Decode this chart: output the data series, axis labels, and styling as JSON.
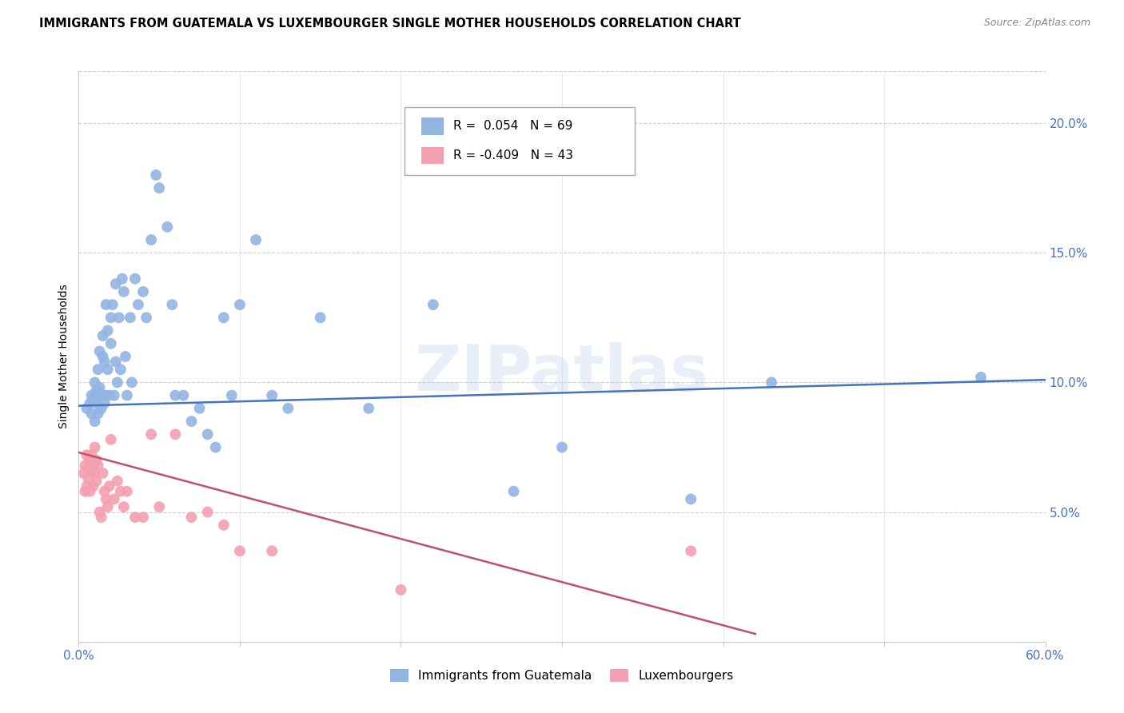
{
  "title": "IMMIGRANTS FROM GUATEMALA VS LUXEMBOURGER SINGLE MOTHER HOUSEHOLDS CORRELATION CHART",
  "source": "Source: ZipAtlas.com",
  "ylabel": "Single Mother Households",
  "right_yticks": [
    "20.0%",
    "15.0%",
    "10.0%",
    "5.0%"
  ],
  "right_ytick_vals": [
    0.2,
    0.15,
    0.1,
    0.05
  ],
  "xlim": [
    0.0,
    0.6
  ],
  "ylim": [
    0.0,
    0.22
  ],
  "legend_blue_r": "R =  0.054",
  "legend_blue_n": "N = 69",
  "legend_pink_r": "R = -0.409",
  "legend_pink_n": "N = 43",
  "blue_color": "#92b4e3",
  "pink_color": "#f4a0b0",
  "blue_line_color": "#4472c4",
  "pink_line_color": "#c0506a",
  "title_fontsize": 10.5,
  "source_fontsize": 9,
  "blue_scatter_x": [
    0.005,
    0.007,
    0.008,
    0.008,
    0.009,
    0.01,
    0.01,
    0.01,
    0.011,
    0.011,
    0.012,
    0.012,
    0.013,
    0.013,
    0.014,
    0.015,
    0.015,
    0.015,
    0.016,
    0.016,
    0.017,
    0.017,
    0.018,
    0.018,
    0.019,
    0.02,
    0.02,
    0.021,
    0.022,
    0.023,
    0.023,
    0.024,
    0.025,
    0.026,
    0.027,
    0.028,
    0.029,
    0.03,
    0.032,
    0.033,
    0.035,
    0.037,
    0.04,
    0.042,
    0.045,
    0.048,
    0.05,
    0.055,
    0.058,
    0.06,
    0.065,
    0.07,
    0.075,
    0.08,
    0.085,
    0.09,
    0.095,
    0.1,
    0.11,
    0.12,
    0.13,
    0.15,
    0.18,
    0.22,
    0.27,
    0.3,
    0.38,
    0.43,
    0.56
  ],
  "blue_scatter_y": [
    0.09,
    0.092,
    0.088,
    0.095,
    0.093,
    0.095,
    0.1,
    0.085,
    0.097,
    0.092,
    0.105,
    0.088,
    0.098,
    0.112,
    0.09,
    0.118,
    0.095,
    0.11,
    0.092,
    0.108,
    0.13,
    0.095,
    0.12,
    0.105,
    0.095,
    0.115,
    0.125,
    0.13,
    0.095,
    0.108,
    0.138,
    0.1,
    0.125,
    0.105,
    0.14,
    0.135,
    0.11,
    0.095,
    0.125,
    0.1,
    0.14,
    0.13,
    0.135,
    0.125,
    0.155,
    0.18,
    0.175,
    0.16,
    0.13,
    0.095,
    0.095,
    0.085,
    0.09,
    0.08,
    0.075,
    0.125,
    0.095,
    0.13,
    0.155,
    0.095,
    0.09,
    0.125,
    0.09,
    0.13,
    0.058,
    0.075,
    0.055,
    0.1,
    0.102
  ],
  "pink_scatter_x": [
    0.003,
    0.004,
    0.004,
    0.005,
    0.005,
    0.006,
    0.006,
    0.007,
    0.007,
    0.008,
    0.008,
    0.009,
    0.009,
    0.01,
    0.01,
    0.011,
    0.011,
    0.012,
    0.013,
    0.014,
    0.015,
    0.016,
    0.017,
    0.018,
    0.019,
    0.02,
    0.022,
    0.024,
    0.026,
    0.028,
    0.03,
    0.035,
    0.04,
    0.045,
    0.05,
    0.06,
    0.07,
    0.08,
    0.09,
    0.1,
    0.12,
    0.2,
    0.38
  ],
  "pink_scatter_y": [
    0.065,
    0.068,
    0.058,
    0.072,
    0.06,
    0.067,
    0.063,
    0.07,
    0.058,
    0.066,
    0.072,
    0.06,
    0.068,
    0.065,
    0.075,
    0.062,
    0.07,
    0.068,
    0.05,
    0.048,
    0.065,
    0.058,
    0.055,
    0.052,
    0.06,
    0.078,
    0.055,
    0.062,
    0.058,
    0.052,
    0.058,
    0.048,
    0.048,
    0.08,
    0.052,
    0.08,
    0.048,
    0.05,
    0.045,
    0.035,
    0.035,
    0.02,
    0.035
  ],
  "blue_line_x": [
    0.0,
    0.6
  ],
  "blue_line_y": [
    0.091,
    0.101
  ],
  "pink_line_x": [
    0.0,
    0.42
  ],
  "pink_line_y": [
    0.073,
    0.003
  ]
}
